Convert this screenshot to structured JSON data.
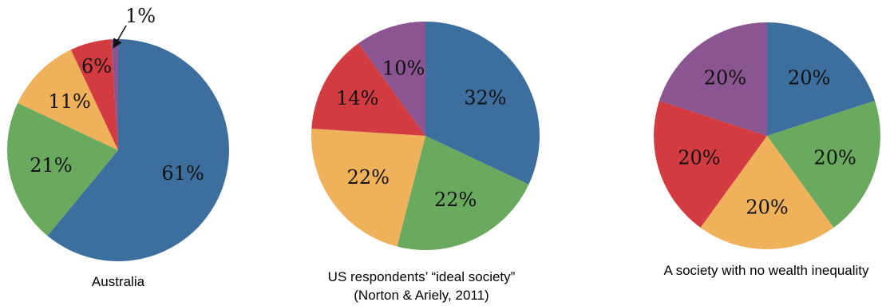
{
  "chart_data": [
    {
      "type": "pie",
      "title": "Australia",
      "subtitle": "",
      "slices": [
        {
          "value": 61,
          "label": "61%"
        },
        {
          "value": 21,
          "label": "21%"
        },
        {
          "value": 11,
          "label": "11%"
        },
        {
          "value": 6,
          "label": "6%"
        },
        {
          "value": 1,
          "label": "1%"
        }
      ]
    },
    {
      "type": "pie",
      "title": "US respondents’ “ideal society”",
      "subtitle": "(Norton & Ariely, 2011)",
      "slices": [
        {
          "value": 32,
          "label": "32%"
        },
        {
          "value": 22,
          "label": "22%"
        },
        {
          "value": 22,
          "label": "22%"
        },
        {
          "value": 14,
          "label": "14%"
        },
        {
          "value": 10,
          "label": "10%"
        }
      ]
    },
    {
      "type": "pie",
      "title": "A society with no wealth inequality",
      "subtitle": "",
      "slices": [
        {
          "value": 20,
          "label": "20%"
        },
        {
          "value": 20,
          "label": "20%"
        },
        {
          "value": 20,
          "label": "20%"
        },
        {
          "value": 20,
          "label": "20%"
        },
        {
          "value": 20,
          "label": "20%"
        }
      ]
    }
  ],
  "colors": [
    "#3c6e9e",
    "#6aaa5e",
    "#f0b15b",
    "#d23c40",
    "#8a5590"
  ]
}
